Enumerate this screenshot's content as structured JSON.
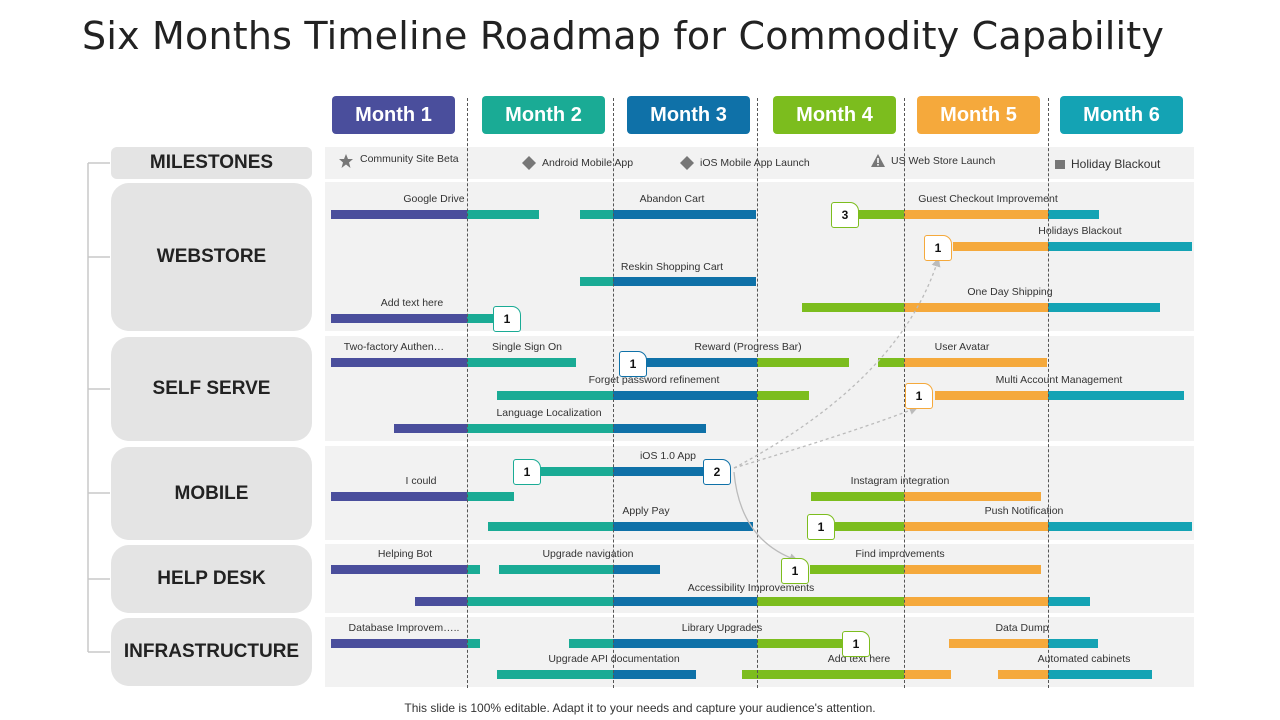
{
  "title": "Six Months Timeline Roadmap for Commodity Capability",
  "months": [
    "Month 1",
    "Month 2",
    "Month 3",
    "Month 4",
    "Month 5",
    "Month 6"
  ],
  "month_colors": [
    "#4a4e9c",
    "#1aab95",
    "#0f71a8",
    "#7cbd1e",
    "#f5a93c",
    "#14a3b4"
  ],
  "rows": {
    "milestones": "MILESTONES",
    "webstore": "WEBSTORE",
    "self_serve": "SELF SERVE",
    "mobile": "MOBILE",
    "help_desk": "HELP DESK",
    "infrastructure": "INFRASTRUCTURE"
  },
  "milestones": [
    {
      "label": "Community  Site Beta",
      "icon": "star-icon"
    },
    {
      "label": "Android Mobile App",
      "icon": "diamond-icon"
    },
    {
      "label": "iOS Mobile App Launch",
      "icon": "diamond-icon"
    },
    {
      "label": "US Web Store Launch",
      "icon": "warning-icon"
    },
    {
      "label": "Holiday Blackout",
      "icon": "square-icon"
    }
  ],
  "tasks": [
    "Google Drive",
    "Abandon Cart",
    "Guest Checkout Improvement",
    "Holidays Blackout",
    "Reskin Shopping Cart",
    "One Day Shipping",
    "Add text here",
    "Two-factory Authen…",
    "Single Sign On",
    "Reward (Progress Bar)",
    "User Avatar",
    "Forget password refinement",
    "Multi Account Management",
    "Language Localization",
    "iOS 1.0 App",
    "I could",
    "Instagram integration",
    "Apply Pay",
    "Push Notification",
    "Helping Bot",
    "Upgrade navigation",
    "Find improvements",
    "Accessibility Improvements",
    "Database Improvem…..",
    "Library Upgrades",
    "Data Dump",
    "Upgrade API documentation",
    "Add text here",
    "Automated cabinets"
  ],
  "badges": [
    "3",
    "1",
    "1",
    "1",
    "1",
    "1",
    "2",
    "1",
    "1",
    "1"
  ],
  "footer": "This slide is 100% editable. Adapt it to your needs and capture your audience's attention."
}
